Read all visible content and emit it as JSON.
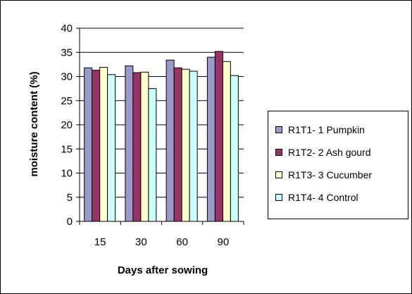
{
  "chart_data": {
    "type": "bar",
    "categories": [
      "15",
      "30",
      "60",
      "90"
    ],
    "series": [
      {
        "name": "R1T1- 1 Pumpkin",
        "values": [
          31.8,
          32.2,
          33.4,
          34.0
        ],
        "color": "#9999CC"
      },
      {
        "name": "R1T2- 2 Ash gourd",
        "values": [
          31.3,
          30.8,
          31.8,
          35.2
        ],
        "color": "#993366"
      },
      {
        "name": "R1T3- 3 Cucumber",
        "values": [
          31.9,
          30.9,
          31.5,
          33.1
        ],
        "color": "#FFFFCC"
      },
      {
        "name": "R1T4- 4 Control",
        "values": [
          30.4,
          27.5,
          31.1,
          30.2
        ],
        "color": "#CCFFFF"
      }
    ],
    "title": "",
    "xlabel": "Days after sowing",
    "ylabel": "moisture content  (%)",
    "ylim": [
      0,
      40
    ],
    "yticks": [
      "0",
      "5",
      "10",
      "15",
      "20",
      "25",
      "30",
      "35",
      "40"
    ],
    "grid": true,
    "legend_position": "right"
  }
}
